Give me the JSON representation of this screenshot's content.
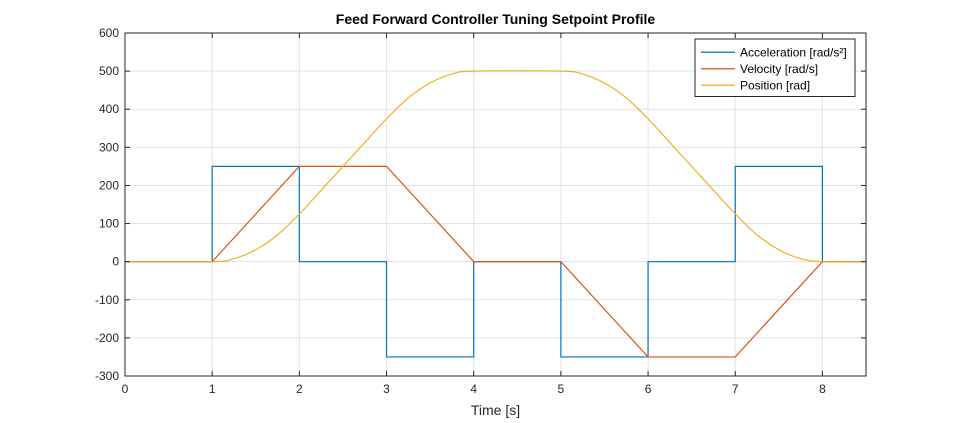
{
  "chart_data": {
    "type": "line",
    "title": "Feed Forward Controller Tuning Setpoint Profile",
    "xlabel": "Time [s]",
    "ylabel": "",
    "xlim": [
      0,
      8.5
    ],
    "ylim": [
      -300,
      600
    ],
    "xticks": [
      0,
      1,
      2,
      3,
      4,
      5,
      6,
      7,
      8
    ],
    "yticks": [
      -300,
      -200,
      -100,
      0,
      100,
      200,
      300,
      400,
      500,
      600
    ],
    "grid": true,
    "legend_position": "top-right",
    "series": [
      {
        "name": "Acceleration [rad/s²]",
        "color": "#0072BD",
        "style": "step",
        "x": [
          0,
          1,
          1,
          2,
          2,
          3,
          3,
          4,
          4,
          5,
          5,
          6,
          6,
          7,
          7,
          8,
          8,
          8.5
        ],
        "y": [
          0,
          0,
          250,
          250,
          0,
          0,
          -250,
          -250,
          0,
          0,
          -250,
          -250,
          0,
          0,
          250,
          250,
          0,
          0
        ]
      },
      {
        "name": "Velocity [rad/s]",
        "color": "#D95319",
        "style": "linear",
        "x": [
          0,
          1,
          2,
          3,
          4,
          5,
          6,
          7,
          8,
          8.5
        ],
        "y": [
          0,
          0,
          250,
          250,
          0,
          0,
          -250,
          -250,
          0,
          0
        ]
      },
      {
        "name": "Position [rad]",
        "color": "#EDB120",
        "style": "smooth",
        "x": [
          0,
          1,
          1.25,
          1.5,
          1.75,
          2,
          2.25,
          2.5,
          2.75,
          3,
          3.25,
          3.5,
          3.75,
          4,
          5,
          5.25,
          5.5,
          5.75,
          6,
          6.25,
          6.5,
          6.75,
          7,
          7.25,
          7.5,
          7.75,
          8,
          8.5
        ],
        "y": [
          0,
          0,
          7.8,
          31.3,
          70.3,
          125,
          187.5,
          250,
          312.5,
          375,
          429.7,
          468.8,
          492.2,
          500,
          500,
          492.2,
          468.8,
          429.7,
          375,
          312.5,
          250,
          187.5,
          125,
          70.3,
          31.3,
          7.8,
          0,
          0
        ]
      }
    ]
  }
}
